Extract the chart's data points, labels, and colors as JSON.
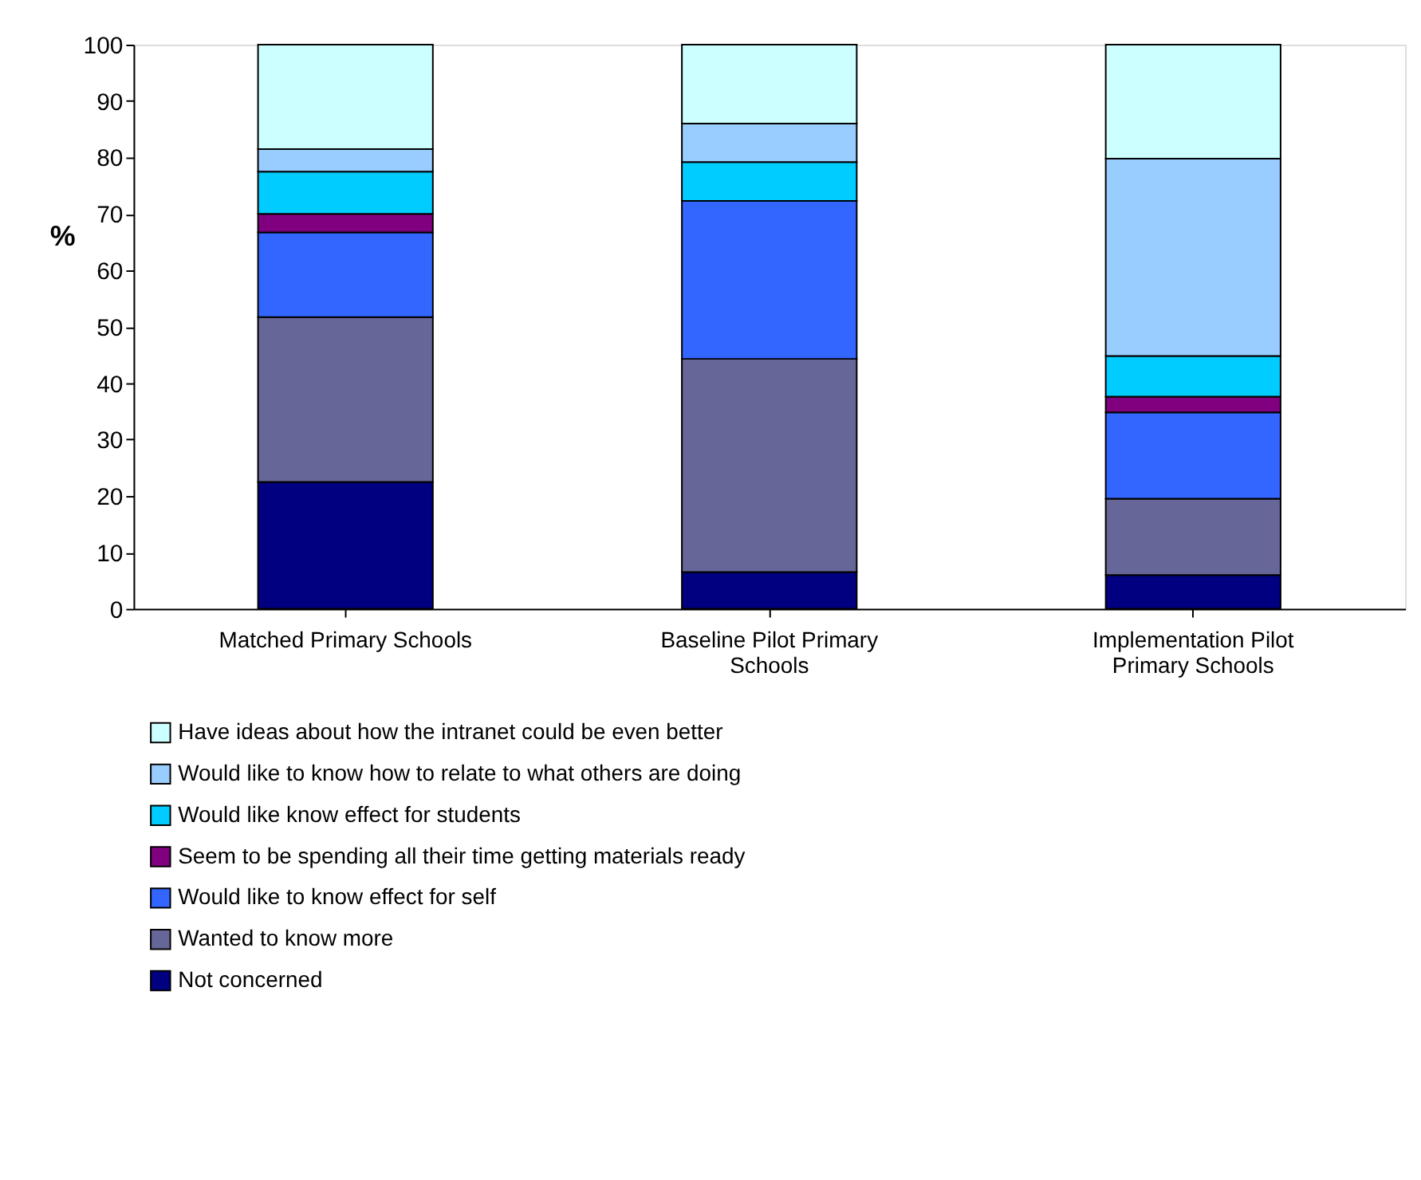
{
  "chart_data": {
    "type": "bar",
    "stacked": true,
    "ylabel": "%",
    "categories": [
      "Matched Primary Schools",
      "Baseline Pilot Primary Schools",
      "Implementation Pilot Primary Schools"
    ],
    "series": [
      {
        "name": "Not concerned",
        "color": "#000080",
        "values": [
          22.5,
          6.5,
          6
        ]
      },
      {
        "name": "Wanted to know more",
        "color": "#666699",
        "values": [
          29.2,
          37.8,
          13.5
        ]
      },
      {
        "name": "Would like to know effect for self",
        "color": "#3366ff",
        "values": [
          15,
          28,
          15.3
        ]
      },
      {
        "name": "Seem to be spending all their time getting materials ready",
        "color": "#800080",
        "values": [
          3.3,
          0,
          2.8
        ]
      },
      {
        "name": "Would like know effect for students",
        "color": "#00ccff",
        "values": [
          7.5,
          6.9,
          7.2
        ]
      },
      {
        "name": "Would like to know how to relate to what others are doing",
        "color": "#99ccff",
        "values": [
          4,
          6.8,
          35
        ]
      },
      {
        "name": "Have ideas about how the intranet could be even better",
        "color": "#ccffff",
        "values": [
          18.5,
          14,
          20.2
        ]
      }
    ],
    "ylim": [
      0,
      100
    ],
    "yticks": [
      0,
      10,
      20,
      30,
      40,
      50,
      60,
      70,
      80,
      90,
      100
    ],
    "grid": false,
    "legend": "bottom"
  }
}
